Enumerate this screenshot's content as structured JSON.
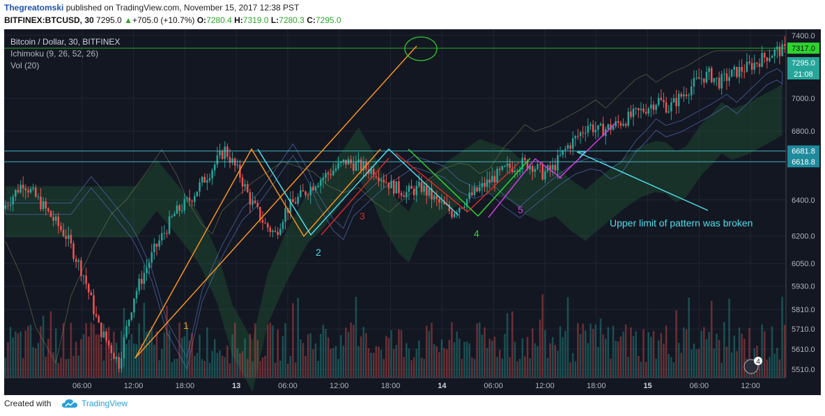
{
  "header": {
    "author": "Thegreatomski",
    "published_text": "published on TradingView.com, November 15, 2017 12:38 PST",
    "symbol": "BITFINEX:BTCUSD, 30",
    "last": "7295.0",
    "change": "+705.0 (+10.7%)",
    "o_label": "O:",
    "o_value": "7280.4",
    "h_label": "H:",
    "h_value": "7319.0",
    "l_label": "L:",
    "l_value": "7280.3",
    "c_label": "C:",
    "c_value": "7295.0"
  },
  "legend": {
    "title": "Bitcoin / Dollar, 30, BITFINEX",
    "ichimoku": "Ichimoku (9, 26, 52, 26)",
    "vol": "Vol (20)"
  },
  "footer": {
    "created": "Created with",
    "brand": "TradingView"
  },
  "colors": {
    "bg": "#131722",
    "up": "#26a69a",
    "down": "#ef5350",
    "grid": "#1f2533",
    "orange": "#f7941d",
    "cyan": "#4fdde8",
    "red": "#d62a2a",
    "green": "#2fd22f",
    "magenta": "#d63be8"
  },
  "chart_data": {
    "type": "candlestick",
    "title": "Bitcoin / Dollar, 30, BITFINEX",
    "x_ticks": [
      "06:00",
      "12:00",
      "18:00",
      "13",
      "06:00",
      "12:00",
      "18:00",
      "14",
      "06:00",
      "12:00",
      "18:00",
      "15",
      "06:00",
      "12:00"
    ],
    "y_ticks": [
      7400.0,
      7000.0,
      6800.0,
      6400.0,
      6200.0,
      6050.0,
      5930.0,
      5810.0,
      5710.0,
      5610.0,
      5510.0
    ],
    "ylim": [
      5470,
      7440
    ],
    "y_scale": "log",
    "price_tags": [
      {
        "value": "7317.0",
        "kind": "level"
      },
      {
        "value": "7295.0",
        "kind": "last"
      },
      {
        "value": "21:08",
        "kind": "countdown"
      },
      {
        "value": "6681.8",
        "kind": "level"
      },
      {
        "value": "6618.8",
        "kind": "level"
      }
    ],
    "horizontal_levels": [
      {
        "value": 7317.0,
        "color": "#2fd22f"
      },
      {
        "value": 6681.8,
        "color": "#4fdde8"
      },
      {
        "value": 6618.8,
        "color": "#4fdde8"
      }
    ],
    "price_path": [
      [
        0,
        6350
      ],
      [
        8,
        6500
      ],
      [
        15,
        6380
      ],
      [
        25,
        6200
      ],
      [
        32,
        5990
      ],
      [
        38,
        5720
      ],
      [
        46,
        5540
      ],
      [
        52,
        5880
      ],
      [
        60,
        6120
      ],
      [
        68,
        6320
      ],
      [
        74,
        6400
      ],
      [
        82,
        6560
      ],
      [
        88,
        6690
      ],
      [
        94,
        6540
      ],
      [
        98,
        6400
      ],
      [
        104,
        6260
      ],
      [
        108,
        6210
      ],
      [
        112,
        6340
      ],
      [
        118,
        6420
      ],
      [
        124,
        6500
      ],
      [
        130,
        6560
      ],
      [
        136,
        6620
      ],
      [
        142,
        6590
      ],
      [
        148,
        6560
      ],
      [
        154,
        6480
      ],
      [
        160,
        6440
      ],
      [
        166,
        6470
      ],
      [
        172,
        6390
      ],
      [
        178,
        6330
      ],
      [
        182,
        6380
      ],
      [
        188,
        6450
      ],
      [
        194,
        6520
      ],
      [
        200,
        6580
      ],
      [
        206,
        6610
      ],
      [
        210,
        6600
      ],
      [
        214,
        6550
      ],
      [
        218,
        6580
      ],
      [
        224,
        6710
      ],
      [
        228,
        6770
      ],
      [
        232,
        6840
      ],
      [
        236,
        6800
      ],
      [
        242,
        6830
      ],
      [
        248,
        6880
      ],
      [
        254,
        6930
      ],
      [
        260,
        6990
      ],
      [
        264,
        6940
      ],
      [
        270,
        7030
      ],
      [
        276,
        7120
      ],
      [
        280,
        7150
      ],
      [
        284,
        7100
      ],
      [
        290,
        7160
      ],
      [
        296,
        7200
      ],
      [
        302,
        7260
      ],
      [
        307,
        7300
      ]
    ],
    "pattern_labels": [
      {
        "text": "1",
        "color": "#f7941d"
      },
      {
        "text": "2",
        "color": "#4fdde8"
      },
      {
        "text": "3",
        "color": "#d62a2a"
      },
      {
        "text": "4",
        "color": "#2fd22f"
      },
      {
        "text": "5",
        "color": "#d63be8"
      }
    ],
    "annotation": {
      "text": "Upper limit of pattern was broken",
      "color": "#4fdde8"
    },
    "countdown_badge": "4"
  }
}
